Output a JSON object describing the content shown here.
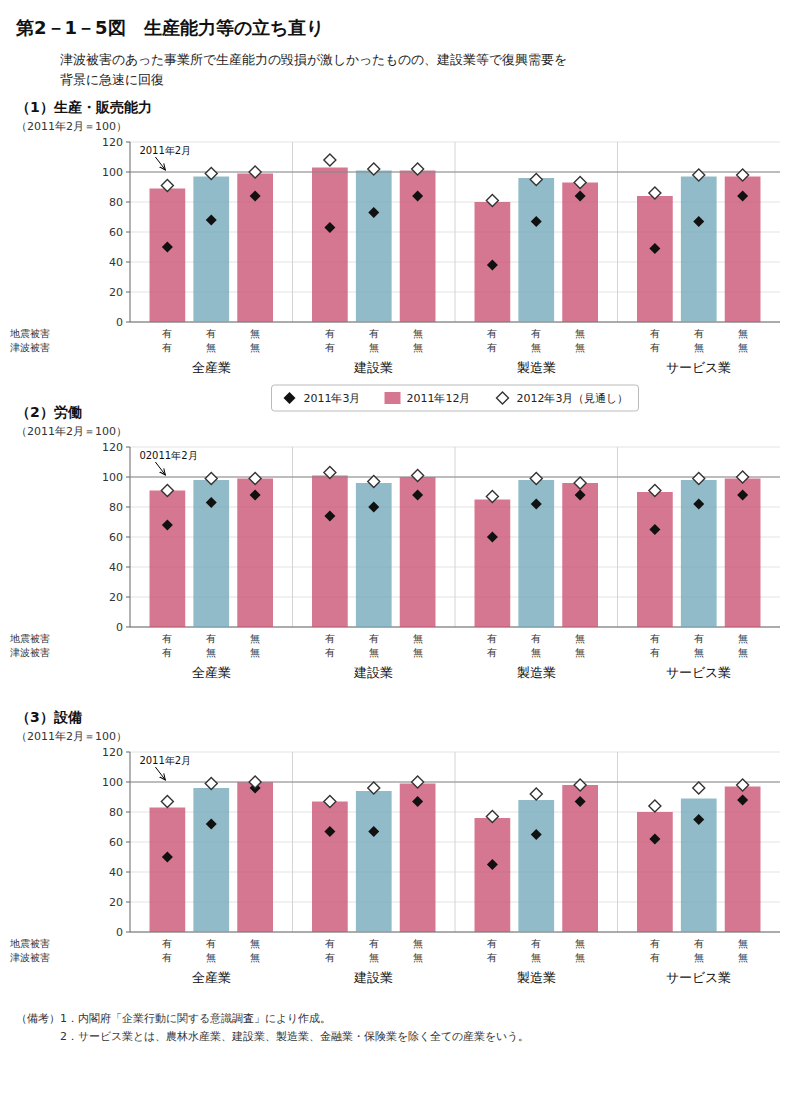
{
  "title": "第2－1－5図　生産能力等の立ち直り",
  "subtitle": [
    "津波被害のあった事業所で生産能力の毀損が激しかったものの、建設業等で復興需要を",
    "背景に急速に回復"
  ],
  "notes": [
    "（備考）1．内閣府「企業行動に関する意識調査」により作成。",
    "　　　　2．サービス業とは、農林水産業、建設業、製造業、金融業・保険業を除く全ての産業をいう。"
  ],
  "chart_data": [
    {
      "type": "bar",
      "title": "（1）生産・販売能力",
      "ylabel": "（2011年2月＝100）",
      "categories": [
        "全産業",
        "建設業",
        "製造業",
        "サービス業"
      ],
      "subcategories": [
        {
          "label": "地震被害",
          "labels": [
            "有",
            "有",
            "無"
          ]
        },
        {
          "label": "津波被害",
          "labels": [
            "有",
            "無",
            "無"
          ]
        }
      ],
      "annotation": {
        "text": "2011年2月",
        "y": 100
      },
      "ylim": [
        0,
        120
      ],
      "yticks": [
        0,
        20,
        40,
        60,
        80,
        100,
        120
      ],
      "grid": true,
      "legend": "bottom",
      "series": [
        {
          "name": "2011年3月",
          "type": "scatter",
          "marker": "diamond",
          "color": "#111111",
          "values": [
            [
              50,
              68,
              84
            ],
            [
              63,
              73,
              84
            ],
            [
              38,
              67,
              84
            ],
            [
              49,
              67,
              84
            ]
          ]
        },
        {
          "name": "2011年12月",
          "type": "bar",
          "colors": [
            [
              "#cc5577",
              "#77aabb",
              "#cc5577"
            ],
            [
              "#cc5577",
              "#77aabb",
              "#cc5577"
            ],
            [
              "#cc5577",
              "#77aabb",
              "#cc5577"
            ],
            [
              "#cc5577",
              "#77aabb",
              "#cc5577"
            ]
          ],
          "values": [
            [
              89,
              97,
              99
            ],
            [
              103,
              101,
              101
            ],
            [
              80,
              96,
              93
            ],
            [
              84,
              97,
              97
            ]
          ]
        },
        {
          "name": "2012年3月（見通し）",
          "type": "scatter",
          "marker": "diamond_open",
          "color": "#333333",
          "values": [
            [
              91,
              99,
              100
            ],
            [
              108,
              102,
              102
            ],
            [
              81,
              95,
              93
            ],
            [
              86,
              98,
              98
            ]
          ]
        }
      ]
    },
    {
      "type": "bar",
      "title": "（2）労働",
      "ylabel": "（2011年2月＝100）",
      "categories": [
        "全産業",
        "建設業",
        "製造業",
        "サービス業"
      ],
      "subcategories": [
        {
          "label": "地震被害",
          "labels": [
            "有",
            "有",
            "無"
          ]
        },
        {
          "label": "津波被害",
          "labels": [
            "有",
            "無",
            "無"
          ]
        }
      ],
      "annotation": {
        "text": "02011年2月",
        "y": 100
      },
      "ylim": [
        0,
        120
      ],
      "yticks": [
        0,
        20,
        40,
        60,
        80,
        100,
        120
      ],
      "grid": true,
      "series": [
        {
          "type": "scatter",
          "marker": "diamond",
          "color": "#111111",
          "values": [
            [
              68,
              83,
              88
            ],
            [
              74,
              80,
              88
            ],
            [
              60,
              82,
              88
            ],
            [
              65,
              82,
              88
            ]
          ]
        },
        {
          "type": "bar",
          "colors": [
            [
              "#cc5577",
              "#77aabb",
              "#cc5577"
            ],
            [
              "#cc5577",
              "#77aabb",
              "#cc5577"
            ],
            [
              "#cc5577",
              "#77aabb",
              "#cc5577"
            ],
            [
              "#cc5577",
              "#77aabb",
              "#cc5577"
            ]
          ],
          "values": [
            [
              91,
              98,
              99
            ],
            [
              101,
              96,
              100
            ],
            [
              85,
              98,
              96
            ],
            [
              90,
              98,
              99
            ]
          ]
        },
        {
          "type": "scatter",
          "marker": "diamond_open",
          "color": "#333333",
          "values": [
            [
              91,
              99,
              99
            ],
            [
              103,
              97,
              101
            ],
            [
              87,
              99,
              96
            ],
            [
              91,
              99,
              100
            ]
          ]
        }
      ]
    },
    {
      "type": "bar",
      "title": "（3）設備",
      "ylabel": "（2011年2月＝100）",
      "categories": [
        "全産業",
        "建設業",
        "製造業",
        "サービス業"
      ],
      "subcategories": [
        {
          "label": "地震被害",
          "labels": [
            "有",
            "有",
            "無"
          ]
        },
        {
          "label": "津波被害",
          "labels": [
            "有",
            "無",
            "無"
          ]
        }
      ],
      "annotation": {
        "text": "2011年2月",
        "y": 100
      },
      "ylim": [
        0,
        120
      ],
      "yticks": [
        0,
        20,
        40,
        60,
        80,
        100,
        120
      ],
      "grid": true,
      "series": [
        {
          "type": "scatter",
          "marker": "diamond",
          "color": "#111111",
          "values": [
            [
              50,
              72,
              96
            ],
            [
              67,
              67,
              87
            ],
            [
              45,
              65,
              87
            ],
            [
              62,
              75,
              88
            ]
          ]
        },
        {
          "type": "bar",
          "colors": [
            [
              "#cc5577",
              "#77aabb",
              "#cc5577"
            ],
            [
              "#cc5577",
              "#77aabb",
              "#cc5577"
            ],
            [
              "#cc5577",
              "#77aabb",
              "#cc5577"
            ],
            [
              "#cc5577",
              "#77aabb",
              "#cc5577"
            ]
          ],
          "values": [
            [
              83,
              96,
              100
            ],
            [
              87,
              94,
              99
            ],
            [
              76,
              88,
              98
            ],
            [
              80,
              89,
              97
            ]
          ]
        },
        {
          "type": "scatter",
          "marker": "diamond_open",
          "color": "#333333",
          "values": [
            [
              87,
              99,
              100
            ],
            [
              87,
              96,
              100
            ],
            [
              77,
              92,
              98
            ],
            [
              84,
              96,
              98
            ]
          ]
        }
      ]
    }
  ]
}
